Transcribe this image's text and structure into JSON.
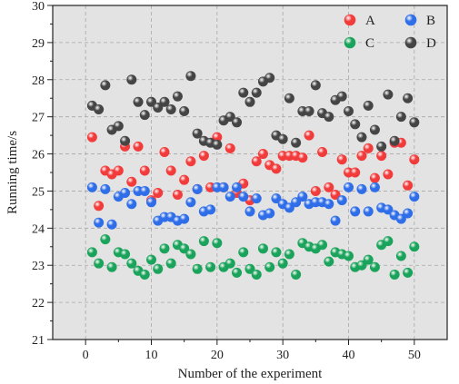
{
  "chart_data": {
    "type": "scatter",
    "title": "",
    "xlabel": "Number of the experiment",
    "ylabel": "Running time/s",
    "xlim": [
      -5,
      55
    ],
    "ylim": [
      21,
      30
    ],
    "xticks": [
      0,
      10,
      20,
      30,
      40,
      50
    ],
    "yticks": [
      21,
      22,
      23,
      24,
      25,
      26,
      27,
      28,
      29,
      30
    ],
    "grid": true,
    "legend_position": "top-right",
    "x": [
      1,
      2,
      3,
      4,
      5,
      6,
      7,
      8,
      9,
      10,
      11,
      12,
      13,
      14,
      15,
      16,
      17,
      18,
      19,
      20,
      21,
      22,
      23,
      24,
      25,
      26,
      27,
      28,
      29,
      30,
      31,
      32,
      33,
      34,
      35,
      36,
      37,
      38,
      39,
      40,
      41,
      42,
      43,
      44,
      45,
      46,
      47,
      48,
      49,
      50
    ],
    "series": [
      {
        "name": "A",
        "color": "#f23b3b",
        "values": [
          26.45,
          24.6,
          25.55,
          25.45,
          25.55,
          26.2,
          25.25,
          26.2,
          25.55,
          24.75,
          24.95,
          26.05,
          25.55,
          24.9,
          25.3,
          25.8,
          25.05,
          25.95,
          25.1,
          26.45,
          25.1,
          26.15,
          24.95,
          25.2,
          24.75,
          25.8,
          26.0,
          25.7,
          25.6,
          25.95,
          25.95,
          25.95,
          25.9,
          26.5,
          25.0,
          26.05,
          25.1,
          24.9,
          25.85,
          25.5,
          25.5,
          25.95,
          26.15,
          25.35,
          25.95,
          25.45,
          26.3,
          26.3,
          25.15,
          25.85
        ]
      },
      {
        "name": "B",
        "color": "#2f6ee8",
        "values": [
          25.1,
          24.15,
          25.05,
          24.1,
          24.85,
          24.95,
          24.65,
          25.0,
          25.0,
          24.7,
          24.2,
          24.3,
          24.3,
          24.2,
          24.25,
          24.7,
          25.05,
          24.45,
          24.5,
          25.1,
          25.1,
          24.85,
          25.1,
          24.85,
          24.45,
          24.8,
          24.35,
          24.4,
          24.8,
          24.65,
          24.55,
          24.7,
          24.85,
          24.65,
          24.7,
          24.7,
          24.65,
          24.2,
          24.75,
          25.1,
          24.45,
          25.05,
          24.45,
          25.1,
          24.55,
          24.5,
          24.35,
          24.25,
          24.4,
          24.85
        ]
      },
      {
        "name": "C",
        "color": "#1aa35a",
        "values": [
          23.35,
          23.05,
          23.7,
          22.95,
          23.35,
          23.3,
          23.05,
          22.85,
          22.75,
          23.15,
          22.9,
          23.45,
          23.05,
          23.55,
          23.45,
          23.3,
          22.9,
          23.65,
          22.95,
          23.6,
          22.95,
          23.05,
          22.8,
          23.35,
          22.9,
          22.75,
          23.45,
          22.95,
          23.35,
          23.05,
          23.3,
          22.75,
          23.6,
          23.5,
          23.45,
          23.55,
          23.1,
          23.35,
          23.3,
          23.25,
          22.95,
          23.0,
          23.15,
          22.95,
          23.55,
          23.65,
          22.75,
          23.25,
          22.8,
          23.5
        ]
      },
      {
        "name": "D",
        "color": "#454545",
        "values": [
          27.3,
          27.2,
          27.85,
          26.65,
          26.75,
          26.35,
          28.0,
          27.4,
          27.05,
          27.4,
          27.25,
          27.4,
          27.2,
          27.55,
          27.15,
          28.1,
          26.55,
          26.35,
          26.3,
          26.25,
          26.9,
          27.0,
          26.85,
          27.65,
          27.4,
          27.65,
          27.95,
          28.05,
          26.5,
          26.4,
          27.5,
          26.3,
          27.15,
          27.15,
          27.85,
          27.1,
          27.0,
          27.45,
          27.55,
          27.15,
          26.8,
          26.45,
          27.3,
          26.65,
          26.2,
          27.6,
          26.35,
          27.0,
          27.5,
          26.85
        ]
      }
    ]
  }
}
